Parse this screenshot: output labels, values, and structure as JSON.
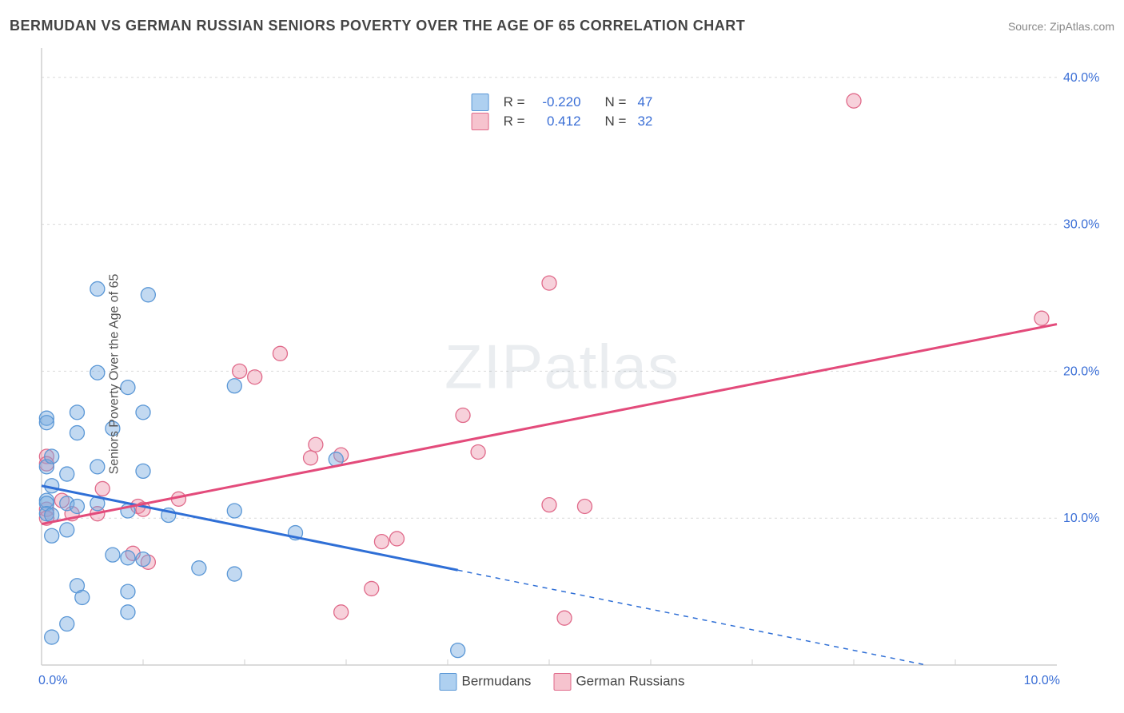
{
  "title": "BERMUDAN VS GERMAN RUSSIAN SENIORS POVERTY OVER THE AGE OF 65 CORRELATION CHART",
  "source": "Source: ZipAtlas.com",
  "watermark": "ZIPatlas",
  "ylabel": "Seniors Poverty Over the Age of 65",
  "chart": {
    "type": "scatter-correlation",
    "background_color": "#ffffff",
    "grid_color": "#d9d9d9",
    "axis_color": "#cfcfcf",
    "tick_color": "#3b6fd6",
    "tick_fontsize": 16,
    "label_fontsize": 16,
    "label_color": "#555555",
    "xlim": [
      0,
      10
    ],
    "ylim": [
      0,
      42
    ],
    "xticks": [
      {
        "v": 0,
        "label": "0.0%"
      },
      {
        "v": 10,
        "label": "10.0%"
      }
    ],
    "yticks": [
      {
        "v": 10,
        "label": "10.0%"
      },
      {
        "v": 20,
        "label": "20.0%"
      },
      {
        "v": 30,
        "label": "30.0%"
      },
      {
        "v": 40,
        "label": "40.0%"
      }
    ],
    "xgrid_minor": [
      1,
      2,
      3,
      4,
      5,
      6,
      7,
      8,
      9
    ],
    "series": [
      {
        "name": "Bermudans",
        "swatch_fill": "#aed0f0",
        "swatch_stroke": "#5a97d6",
        "point_fill": "rgba(120,170,225,0.45)",
        "point_stroke": "#5a97d6",
        "point_radius": 9,
        "line_color": "#2f6fd6",
        "line_width": 3,
        "line_dash_extrapolate": "6 6",
        "r": "-0.220",
        "n": "47",
        "trend": {
          "x1": 0,
          "y1": 12.2,
          "x2": 10,
          "y2": -1.8,
          "solid_x_max": 4.1
        },
        "points": [
          [
            0.05,
            16.8
          ],
          [
            0.05,
            16.5
          ],
          [
            0.05,
            13.5
          ],
          [
            0.05,
            11.2
          ],
          [
            0.05,
            11.0
          ],
          [
            0.05,
            10.3
          ],
          [
            0.1,
            14.2
          ],
          [
            0.1,
            12.2
          ],
          [
            0.1,
            10.2
          ],
          [
            0.1,
            8.8
          ],
          [
            0.1,
            1.9
          ],
          [
            0.25,
            13.0
          ],
          [
            0.25,
            11.0
          ],
          [
            0.25,
            9.2
          ],
          [
            0.25,
            2.8
          ],
          [
            0.35,
            17.2
          ],
          [
            0.35,
            15.8
          ],
          [
            0.35,
            10.8
          ],
          [
            0.35,
            5.4
          ],
          [
            0.4,
            4.6
          ],
          [
            0.55,
            25.6
          ],
          [
            0.55,
            19.9
          ],
          [
            0.55,
            13.5
          ],
          [
            0.55,
            11.0
          ],
          [
            0.7,
            16.1
          ],
          [
            0.7,
            7.5
          ],
          [
            0.85,
            18.9
          ],
          [
            0.85,
            10.5
          ],
          [
            0.85,
            7.3
          ],
          [
            0.85,
            5.0
          ],
          [
            0.85,
            3.6
          ],
          [
            1.0,
            17.2
          ],
          [
            1.0,
            13.2
          ],
          [
            1.0,
            7.2
          ],
          [
            1.05,
            25.2
          ],
          [
            1.25,
            10.2
          ],
          [
            1.55,
            6.6
          ],
          [
            1.9,
            19.0
          ],
          [
            1.9,
            10.5
          ],
          [
            1.9,
            6.2
          ],
          [
            2.5,
            9.0
          ],
          [
            2.9,
            14.0
          ],
          [
            4.1,
            1.0
          ]
        ]
      },
      {
        "name": "German Russians",
        "swatch_fill": "#f6c3ce",
        "swatch_stroke": "#e06a8a",
        "point_fill": "rgba(235,140,165,0.40)",
        "point_stroke": "#e06a8a",
        "point_radius": 9,
        "line_color": "#e34b7b",
        "line_width": 3,
        "r": "0.412",
        "n": "32",
        "trend": {
          "x1": 0,
          "y1": 9.6,
          "x2": 10,
          "y2": 23.2
        },
        "points": [
          [
            0.05,
            14.2
          ],
          [
            0.05,
            13.7
          ],
          [
            0.05,
            10.6
          ],
          [
            0.05,
            10.0
          ],
          [
            0.2,
            11.2
          ],
          [
            0.3,
            10.3
          ],
          [
            0.55,
            10.3
          ],
          [
            0.6,
            12.0
          ],
          [
            0.9,
            7.6
          ],
          [
            0.95,
            10.8
          ],
          [
            1.0,
            10.6
          ],
          [
            1.05,
            7.0
          ],
          [
            1.35,
            11.3
          ],
          [
            1.95,
            20.0
          ],
          [
            2.1,
            19.6
          ],
          [
            2.35,
            21.2
          ],
          [
            2.65,
            14.1
          ],
          [
            2.7,
            15.0
          ],
          [
            2.95,
            14.3
          ],
          [
            2.95,
            3.6
          ],
          [
            3.25,
            5.2
          ],
          [
            3.35,
            8.4
          ],
          [
            3.5,
            8.6
          ],
          [
            4.15,
            17.0
          ],
          [
            4.3,
            14.5
          ],
          [
            5.0,
            26.0
          ],
          [
            5.0,
            10.9
          ],
          [
            5.35,
            10.8
          ],
          [
            5.15,
            3.2
          ],
          [
            8.0,
            38.4
          ],
          [
            9.85,
            23.6
          ]
        ]
      }
    ]
  },
  "legend_top_labels": {
    "r": "R =",
    "n": "N ="
  },
  "legend_bottom": [
    {
      "swatch_fill": "#aed0f0",
      "swatch_stroke": "#5a97d6",
      "label": "Bermudans"
    },
    {
      "swatch_fill": "#f6c3ce",
      "swatch_stroke": "#e06a8a",
      "label": "German Russians"
    }
  ]
}
